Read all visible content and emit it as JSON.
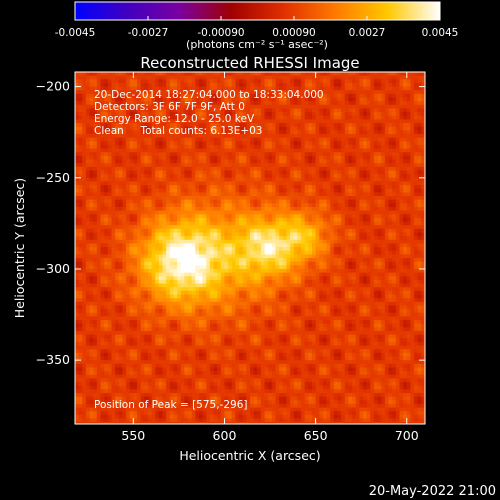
{
  "colorbar": {
    "min": -0.0045,
    "max": 0.0045,
    "tick_labels": [
      "-0.0045",
      "-0.0027",
      "-0.00090",
      "0.00090",
      "0.0027",
      "0.0045"
    ],
    "tick_values": [
      -0.0045,
      -0.0027,
      -0.0009,
      0.0009,
      0.0027,
      0.0045
    ],
    "unit_label": "(photons cm⁻² s⁻¹ asec⁻²)",
    "colormap": [
      "#0000ff",
      "#4000c0",
      "#7a00a0",
      "#a00000",
      "#e03000",
      "#ff7a00",
      "#ffc800",
      "#ffffff"
    ]
  },
  "chart_data": {
    "type": "heatmap",
    "title": "Reconstructed RHESSI Image",
    "xlabel": "Heliocentric X (arcsec)",
    "ylabel": "Heliocentric Y (arcsec)",
    "xlim": [
      518,
      710
    ],
    "ylim": [
      -385,
      -192
    ],
    "xticks": [
      550,
      600,
      650,
      700
    ],
    "yticks": [
      -200,
      -250,
      -300,
      -350
    ],
    "xtick_labels": [
      "550",
      "600",
      "650",
      "700"
    ],
    "ytick_labels": [
      "−200",
      "−250",
      "−300",
      "−350"
    ],
    "annotations": [
      "20-Dec-2014 18:27:04.000 to 18:33:04.000",
      "Detectors: 3F 6F 7F 9F, Att 0",
      "Energy Range: 12.0 - 25.0 keV",
      "Clean     Total counts: 6.13E+03"
    ],
    "peak_label": "Position of Peak = [575,-296]",
    "peak": {
      "x": 575,
      "y": -296
    },
    "sources": [
      {
        "x": 575,
        "y": -296,
        "amplitude": 1.0,
        "sigma": 16
      },
      {
        "x": 625,
        "y": -288,
        "amplitude": 0.75,
        "sigma": 12
      },
      {
        "x": 645,
        "y": -282,
        "amplitude": 0.55,
        "sigma": 10
      },
      {
        "x": 600,
        "y": -292,
        "amplitude": 0.5,
        "sigma": 22
      }
    ]
  },
  "footer": {
    "timestamp": "20-May-2022 21:00"
  }
}
